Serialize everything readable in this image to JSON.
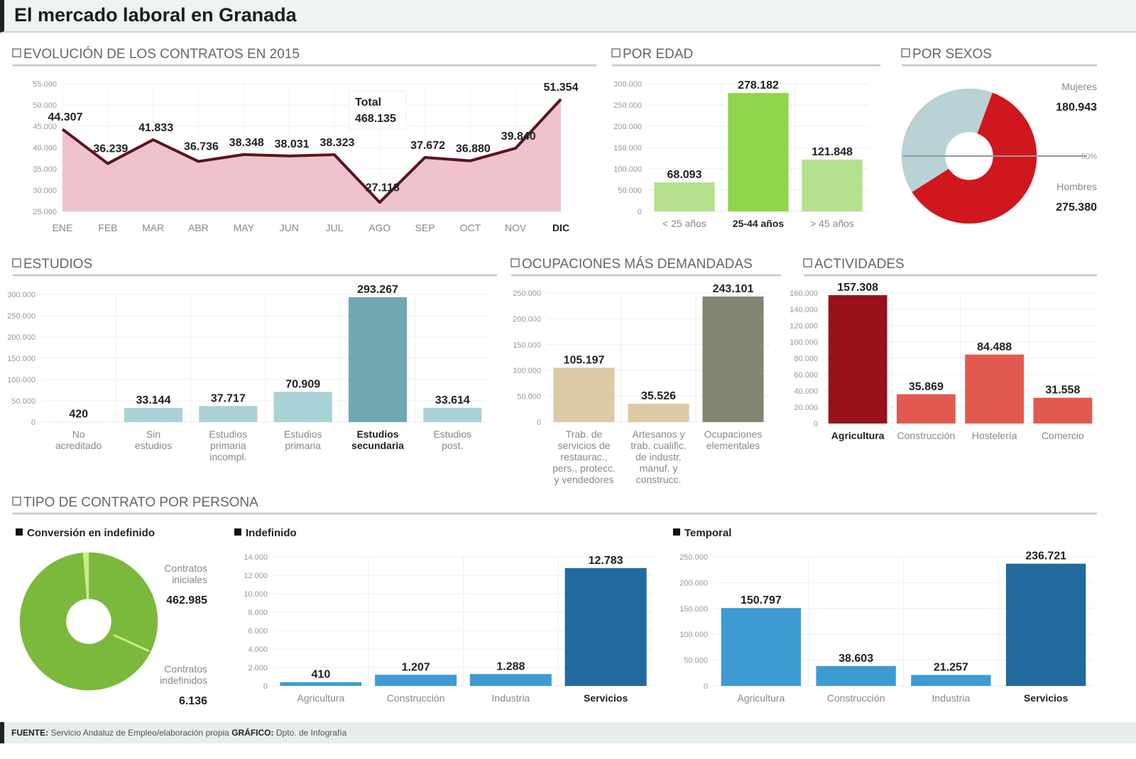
{
  "title": "El mercado laboral en Granada",
  "footer": {
    "source_label": "FUENTE:",
    "source": "Servicio Andaluz de Empleo/elaboración propia",
    "graphic_label": "GRÁFICO:",
    "graphic": "Dpto. de Infografía"
  },
  "sections": {
    "evolucion": "EVOLUCIÓN DE LOS CONTRATOS EN 2015",
    "edad": "POR EDAD",
    "sexos": "POR SEXOS",
    "estudios": "ESTUDIOS",
    "ocupaciones": "OCUPACIONES MÁS DEMANDADAS",
    "actividades": "ACTIVIDADES",
    "tipo": "TIPO DE CONTRATO POR PERSONA"
  },
  "chart_data": [
    {
      "id": "evolucion",
      "type": "area",
      "categories": [
        "ENE",
        "FEB",
        "MAR",
        "ABR",
        "MAY",
        "JUN",
        "JUL",
        "AGO",
        "SEP",
        "OCT",
        "NOV",
        "DIC"
      ],
      "values": [
        44307,
        36239,
        41833,
        36736,
        38348,
        38031,
        38323,
        27118,
        37672,
        36880,
        39840,
        51354
      ],
      "ylim": [
        25000,
        55000
      ],
      "yticks": [
        25000,
        30000,
        35000,
        40000,
        45000,
        50000,
        55000
      ],
      "annotation": {
        "label": "Total",
        "value": "468.135"
      },
      "colors": {
        "line": "#5a1520",
        "fill": "#f0c3cc"
      }
    },
    {
      "id": "edad",
      "type": "bar",
      "categories": [
        "< 25 años",
        "25-44 años",
        "> 45 años"
      ],
      "values": [
        68093,
        278182,
        121848
      ],
      "ylim": [
        0,
        300000
      ],
      "yticks": [
        0,
        50000,
        100000,
        150000,
        200000,
        250000,
        300000
      ],
      "bold": [
        1
      ],
      "colors": [
        "#b5e08e",
        "#8fd64a",
        "#b5e08e"
      ]
    },
    {
      "id": "sexos",
      "type": "pie",
      "slices": [
        {
          "label": "Mujeres",
          "value": 180943,
          "color": "#b8d2d6"
        },
        {
          "label": "Hombres",
          "value": 275380,
          "color": "#d0171d"
        }
      ],
      "midline": "50%"
    },
    {
      "id": "estudios",
      "type": "bar",
      "categories": [
        "No\nacreditado",
        "Sin\nestudios",
        "Estudios\nprimaria\nincompl.",
        "Estudios\nprimaria",
        "Estudios\nsecundaria",
        "Estudios\npost."
      ],
      "values": [
        420,
        33144,
        37717,
        70909,
        293267,
        33614
      ],
      "ylim": [
        0,
        300000
      ],
      "yticks": [
        0,
        50000,
        100000,
        150000,
        200000,
        250000,
        300000
      ],
      "bold": [
        4
      ],
      "colors": [
        "#a9d2d6",
        "#a9d2d6",
        "#a9d2d6",
        "#a9d2d6",
        "#6fa8b3",
        "#a9d2d6"
      ]
    },
    {
      "id": "ocupaciones",
      "type": "bar",
      "categories": [
        "Trab. de\nservicios de\nrestaurac.,\npers., protecc.\ny vendedores",
        "Artesanos y\ntrab. cualific.\nde industr.\nmanuf. y\nconstrucc.",
        "Ocupaciones\nelementales"
      ],
      "values": [
        105197,
        35526,
        243101
      ],
      "ylim": [
        0,
        250000
      ],
      "yticks": [
        0,
        50000,
        100000,
        150000,
        200000,
        250000
      ],
      "bold": [],
      "colors": [
        "#dccaa6",
        "#dccaa6",
        "#818670"
      ]
    },
    {
      "id": "actividades",
      "type": "bar",
      "categories": [
        "Agricultura",
        "Construcción",
        "Hostelería",
        "Comercio"
      ],
      "values": [
        157308,
        35869,
        84488,
        31558
      ],
      "ylim": [
        0,
        160000
      ],
      "yticks": [
        0,
        20000,
        40000,
        60000,
        80000,
        100000,
        120000,
        140000,
        160000
      ],
      "bold": [
        0
      ],
      "colors": [
        "#98101a",
        "#e25a4f",
        "#e25a4f",
        "#e25a4f"
      ]
    },
    {
      "id": "conversion",
      "type": "pie",
      "subtitle": "Conversión en indefinido",
      "slices": [
        {
          "label": "Contratos\niniciales",
          "value": 462985,
          "color": "#7bb93c"
        },
        {
          "label": "Contratos\nindefinidos",
          "value": 6136,
          "color": "#c8ec8a"
        }
      ]
    },
    {
      "id": "indefinido",
      "type": "bar",
      "subtitle": "Indefinido",
      "categories": [
        "Agricultura",
        "Construcción",
        "Industria",
        "Servicios"
      ],
      "values": [
        410,
        1207,
        1288,
        12783
      ],
      "ylim": [
        0,
        14000
      ],
      "yticks": [
        0,
        2000,
        4000,
        6000,
        8000,
        10000,
        12000,
        14000
      ],
      "bold": [
        3
      ],
      "colors": [
        "#3d9bd1",
        "#3d9bd1",
        "#3d9bd1",
        "#216a9e"
      ]
    },
    {
      "id": "temporal",
      "type": "bar",
      "subtitle": "Temporal",
      "categories": [
        "Agricultura",
        "Construcción",
        "Industria",
        "Servicios"
      ],
      "values": [
        150797,
        38603,
        21257,
        236721
      ],
      "ylim": [
        0,
        250000
      ],
      "yticks": [
        0,
        50000,
        100000,
        150000,
        200000,
        250000
      ],
      "bold": [
        3
      ],
      "colors": [
        "#3d9bd1",
        "#3d9bd1",
        "#3d9bd1",
        "#216a9e"
      ]
    }
  ]
}
